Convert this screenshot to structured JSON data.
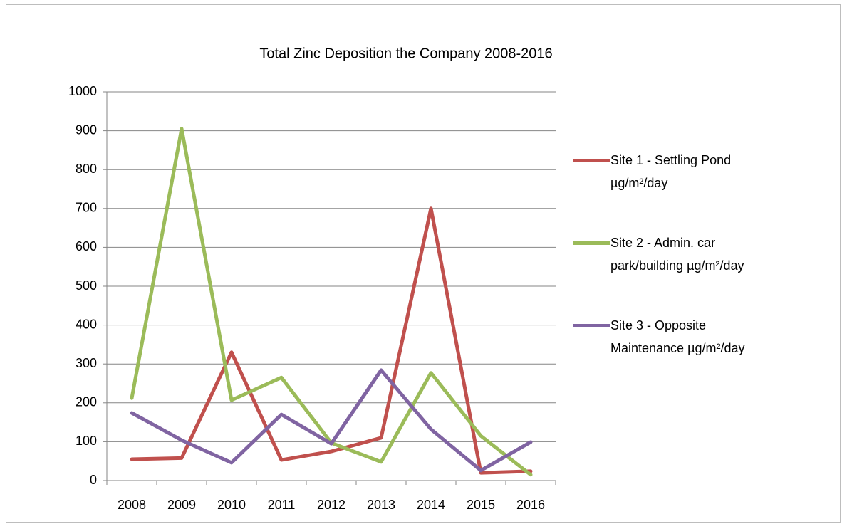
{
  "chart_data": {
    "type": "line",
    "title": "Total Zinc Deposition the Company 2008-2016",
    "categories": [
      "2008",
      "2009",
      "2010",
      "2011",
      "2012",
      "2013",
      "2014",
      "2015",
      "2016"
    ],
    "series": [
      {
        "name": "Site 1 - Settling Pond µg/m²/day",
        "color": "#c0504d",
        "values": [
          55,
          58,
          330,
          53,
          75,
          110,
          700,
          20,
          24
        ]
      },
      {
        "name": "Site 2 - Admin. car park/building µg/m²/day",
        "color": "#9bbb59",
        "values": [
          212,
          905,
          207,
          265,
          97,
          48,
          277,
          115,
          15
        ]
      },
      {
        "name": "Site 3 - Opposite Maintenance µg/m²/day",
        "color": "#8064a2",
        "values": [
          174,
          104,
          46,
          170,
          95,
          284,
          132,
          26,
          99
        ]
      }
    ],
    "ylim": [
      0,
      1000
    ],
    "yticks": [
      0,
      100,
      200,
      300,
      400,
      500,
      600,
      700,
      800,
      900,
      1000
    ],
    "grid": true,
    "legend": "right"
  }
}
